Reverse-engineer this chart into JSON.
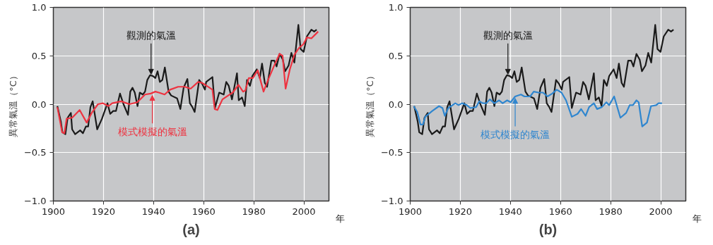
{
  "chart_data": [
    {
      "type": "line",
      "title": "(a)",
      "xlabel": "年",
      "ylabel": "異常氣溫（°C）",
      "xlim": [
        1900,
        2010
      ],
      "ylim": [
        -1,
        1
      ],
      "xticks": [
        1900,
        1920,
        1940,
        1960,
        1980,
        2000
      ],
      "yticks": [
        {
          "value": -1,
          "label": "−1.0"
        },
        {
          "value": -0.5,
          "label": "−0.5"
        },
        {
          "value": 0,
          "label": "0.0"
        },
        {
          "value": 0.5,
          "label": "0.5"
        },
        {
          "value": 1,
          "label": "1.0"
        }
      ],
      "grid": true,
      "series": [
        {
          "color": "#1a1a1a",
          "x": [
            1901.6,
            1903,
            1903.6,
            1904.8,
            1905.7,
            1907,
            1907.5,
            1908.7,
            1910.7,
            1911.8,
            1913,
            1913.9,
            1914.8,
            1915.7,
            1917.5,
            1919.4,
            1921.6,
            1922.7,
            1923.9,
            1925,
            1926.6,
            1928,
            1929.8,
            1930.7,
            1931.6,
            1932.5,
            1933.6,
            1934.5,
            1935.7,
            1936.6,
            1937.5,
            1938.6,
            1939.8,
            1940.7,
            1941.6,
            1942.5,
            1943.5,
            1944.5,
            1946,
            1947,
            1949.4,
            1950.7,
            1952,
            1953.5,
            1954.5,
            1955.5,
            1956.4,
            1958.2,
            1959.4,
            1960.5,
            1961,
            1963.5,
            1964.5,
            1966.2,
            1968,
            1969,
            1970,
            1971.3,
            1973.3,
            1974,
            1975.3,
            1976.4,
            1977.3,
            1978.5,
            1979.4,
            1981.2,
            1982.4,
            1983.3,
            1984.4,
            1985.3,
            1987,
            1988.2,
            1989.1,
            1990.3,
            1991.6,
            1992.5,
            1993.9,
            1995,
            1996.2,
            1997.8,
            1998.7,
            1999.9,
            2001.2,
            2003,
            2004.1,
            2005.1
          ],
          "values": [
            -0.02,
            -0.18,
            -0.29,
            -0.31,
            -0.14,
            -0.09,
            -0.26,
            -0.31,
            -0.27,
            -0.3,
            -0.23,
            -0.23,
            -0.03,
            0.03,
            -0.26,
            -0.15,
            0.01,
            -0.1,
            -0.07,
            -0.07,
            0.11,
            0.0,
            -0.11,
            0.13,
            0.17,
            0.12,
            -0.02,
            0.12,
            0.1,
            0.13,
            0.25,
            0.3,
            0.29,
            0.27,
            0.34,
            0.23,
            0.25,
            0.38,
            0.13,
            0.09,
            0.06,
            -0.05,
            0.17,
            0.26,
            0.01,
            -0.03,
            -0.08,
            0.25,
            0.21,
            0.15,
            0.23,
            0.28,
            -0.04,
            0.12,
            0.1,
            0.23,
            0.19,
            0.05,
            0.32,
            0.04,
            0.07,
            -0.02,
            0.25,
            0.19,
            0.29,
            0.36,
            0.27,
            0.42,
            0.22,
            0.18,
            0.45,
            0.45,
            0.39,
            0.52,
            0.46,
            0.34,
            0.4,
            0.53,
            0.43,
            0.82,
            0.57,
            0.54,
            0.7,
            0.77,
            0.75,
            0.77
          ]
        },
        {
          "color": "#ee3340",
          "x": [
            1901.6,
            1903.5,
            1904.4,
            1905.3,
            1907.5,
            1910.5,
            1913.3,
            1915.3,
            1917.8,
            1919.8,
            1922,
            1923.5,
            1927.1,
            1930.3,
            1933.5,
            1936.6,
            1938.9,
            1940.7,
            1942.1,
            1944.4,
            1946.6,
            1949.8,
            1952.5,
            1954.8,
            1957.8,
            1959.4,
            1961.2,
            1963.5,
            1964.4,
            1965.5,
            1967.5,
            1969.8,
            1971.6,
            1973.9,
            1975.7,
            1976.6,
            1978,
            1979.6,
            1981.6,
            1983.9,
            1985.7,
            1988,
            1990.3,
            1991.5,
            1992.7,
            1994.4,
            1996.2,
            1998,
            1999.8,
            2001.2,
            2003,
            2005.7
          ],
          "values": [
            -0.03,
            -0.29,
            -0.3,
            -0.15,
            -0.14,
            -0.06,
            -0.19,
            -0.09,
            0.0,
            0.01,
            -0.02,
            0.01,
            0.03,
            0.0,
            0.02,
            0.1,
            0.11,
            0.13,
            0.12,
            0.1,
            0.15,
            0.18,
            0.18,
            0.16,
            0.23,
            0.22,
            0.19,
            0.15,
            -0.05,
            -0.06,
            0.05,
            0.09,
            0.12,
            0.2,
            0.13,
            0.14,
            0.27,
            0.27,
            0.35,
            0.13,
            0.25,
            0.39,
            0.52,
            0.5,
            0.16,
            0.36,
            0.51,
            0.58,
            0.62,
            0.69,
            0.68,
            0.75
          ]
        }
      ],
      "annotations": [
        {
          "text": "觀測的氣溫",
          "x": 1939,
          "y": 0.29
        },
        {
          "text": "模式模擬的氣溫",
          "x": 1939.5,
          "y": 0.11
        }
      ]
    },
    {
      "type": "line",
      "title": "(b)",
      "xlabel": "年",
      "ylabel": "異常氣溫（°C）",
      "xlim": [
        1900,
        2010
      ],
      "ylim": [
        -1,
        1
      ],
      "xticks": [
        1900,
        1920,
        1940,
        1960,
        1980,
        2000
      ],
      "yticks": [
        {
          "value": -1,
          "label": "−1.0"
        },
        {
          "value": -0.5,
          "label": "−0.5"
        },
        {
          "value": 0,
          "label": "0.0"
        },
        {
          "value": 0.5,
          "label": "0.5"
        },
        {
          "value": 1,
          "label": "1.0"
        }
      ],
      "grid": true,
      "series": [
        {
          "color": "#1a1a1a",
          "x": [
            1901.6,
            1903,
            1903.6,
            1904.8,
            1905.7,
            1907,
            1907.5,
            1908.7,
            1910.7,
            1911.8,
            1913,
            1913.9,
            1914.8,
            1915.7,
            1917.5,
            1919.4,
            1921.6,
            1922.7,
            1923.9,
            1925,
            1926.6,
            1928,
            1929.8,
            1930.7,
            1931.6,
            1932.5,
            1933.6,
            1934.5,
            1935.7,
            1936.6,
            1937.5,
            1938.6,
            1939.8,
            1940.7,
            1941.6,
            1942.5,
            1943.5,
            1944.5,
            1946,
            1947,
            1949.4,
            1950.7,
            1952,
            1953.5,
            1954.5,
            1955.5,
            1956.4,
            1958.2,
            1959.4,
            1960.5,
            1961,
            1963.5,
            1964.5,
            1966.2,
            1968,
            1969,
            1970,
            1971.3,
            1973.3,
            1974,
            1975.3,
            1976.4,
            1977.3,
            1978.5,
            1979.4,
            1981.2,
            1982.4,
            1983.3,
            1984.4,
            1985.3,
            1987,
            1988.2,
            1989.1,
            1990.3,
            1991.6,
            1992.5,
            1993.9,
            1995,
            1996.2,
            1997.8,
            1998.7,
            1999.9,
            2001.2,
            2003,
            2004.1,
            2005.1
          ],
          "values": [
            -0.02,
            -0.18,
            -0.29,
            -0.31,
            -0.14,
            -0.09,
            -0.26,
            -0.31,
            -0.27,
            -0.3,
            -0.23,
            -0.23,
            -0.03,
            0.03,
            -0.26,
            -0.15,
            0.01,
            -0.1,
            -0.07,
            -0.07,
            0.11,
            0.0,
            -0.11,
            0.13,
            0.17,
            0.12,
            -0.02,
            0.12,
            0.1,
            0.13,
            0.25,
            0.3,
            0.29,
            0.27,
            0.34,
            0.23,
            0.25,
            0.38,
            0.13,
            0.09,
            0.06,
            -0.05,
            0.17,
            0.26,
            0.01,
            -0.03,
            -0.08,
            0.25,
            0.21,
            0.15,
            0.23,
            0.28,
            -0.04,
            0.12,
            0.1,
            0.23,
            0.19,
            0.05,
            0.32,
            0.04,
            0.07,
            -0.02,
            0.25,
            0.19,
            0.29,
            0.36,
            0.27,
            0.42,
            0.22,
            0.18,
            0.45,
            0.45,
            0.39,
            0.52,
            0.46,
            0.34,
            0.4,
            0.53,
            0.43,
            0.82,
            0.57,
            0.54,
            0.7,
            0.77,
            0.75,
            0.77
          ]
        },
        {
          "color": "#2f86cf",
          "x": [
            1901.4,
            1902.8,
            1904.1,
            1905.1,
            1906,
            1908.8,
            1911.5,
            1912.9,
            1913.8,
            1915.2,
            1918,
            1919.3,
            1920.7,
            1922.6,
            1924,
            1926.3,
            1927.6,
            1929,
            1930.4,
            1931.8,
            1933.6,
            1935.5,
            1936.9,
            1938.7,
            1940.1,
            1941.9,
            1944.2,
            1945.6,
            1947.9,
            1949.3,
            1951.2,
            1953,
            1954.8,
            1956.7,
            1958.5,
            1960.4,
            1962.2,
            1964.5,
            1966.8,
            1968.2,
            1970,
            1971.4,
            1973.3,
            1974.6,
            1976.5,
            1978.3,
            1979.4,
            1981.4,
            1983.9,
            1986.2,
            1987.6,
            1988.9,
            1990.3,
            1991.2,
            1992.6,
            1994.5,
            1996.1,
            1998.2,
            1999.1,
            2000.5
          ],
          "values": [
            -0.02,
            -0.08,
            -0.21,
            -0.21,
            -0.13,
            -0.07,
            -0.02,
            -0.04,
            -0.12,
            -0.04,
            0.01,
            -0.01,
            0.01,
            -0.01,
            -0.04,
            -0.03,
            0.03,
            0.01,
            0.01,
            0.05,
            0.01,
            0.04,
            0.01,
            0.04,
            0.02,
            0.08,
            0.1,
            0.08,
            0.08,
            0.13,
            0.12,
            0.12,
            0.08,
            0.11,
            0.15,
            0.12,
            0.04,
            -0.13,
            -0.1,
            -0.05,
            -0.12,
            -0.03,
            0.01,
            -0.05,
            -0.03,
            0.02,
            -0.01,
            0.08,
            -0.14,
            -0.09,
            -0.01,
            -0.01,
            0.04,
            0.02,
            -0.23,
            -0.19,
            -0.02,
            -0.01,
            0.01,
            0.01
          ]
        }
      ],
      "annotations": [
        {
          "text": "觀測的氣溫",
          "x": 1939,
          "y": 0.29
        },
        {
          "text": "模式模擬的氣溫",
          "x": 1941.9,
          "y": 0.08
        }
      ]
    }
  ]
}
